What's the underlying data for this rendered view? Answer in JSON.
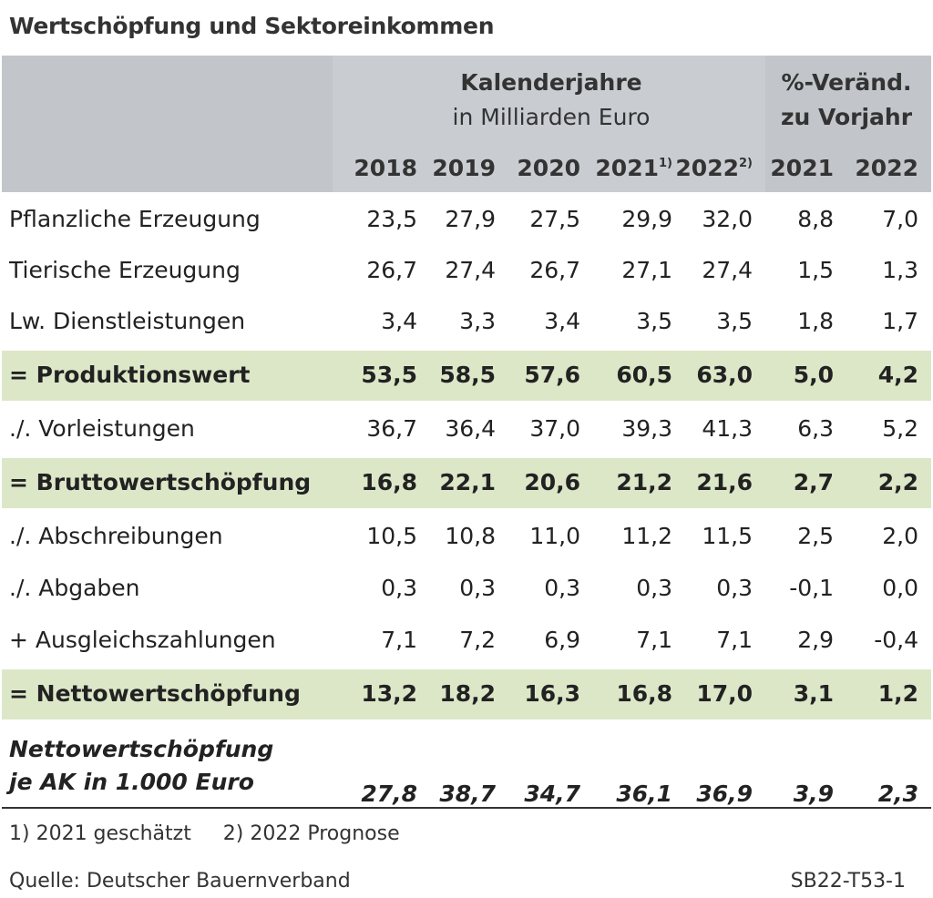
{
  "title": "Wertschöpfung und Sektoreinkommen",
  "header": {
    "group1_line1": "Kalenderjahre",
    "group1_line2": "in Milliarden Euro",
    "group2_line1": "%-Veränd.",
    "group2_line2": "zu Vorjahr",
    "years": [
      {
        "label": "2018",
        "sup": ""
      },
      {
        "label": "2019",
        "sup": ""
      },
      {
        "label": "2020",
        "sup": ""
      },
      {
        "label": "2021",
        "sup": "1)"
      },
      {
        "label": "2022",
        "sup": "2)"
      },
      {
        "label": "2021",
        "sup": ""
      },
      {
        "label": "2022",
        "sup": ""
      }
    ]
  },
  "rows": [
    {
      "label": "Pflanzliche Erzeugung",
      "highlight": false,
      "values": [
        "23,5",
        "27,9",
        "27,5",
        "29,9",
        "32,0",
        "8,8",
        "7,0"
      ]
    },
    {
      "label": "Tierische Erzeugung",
      "highlight": false,
      "values": [
        "26,7",
        "27,4",
        "26,7",
        "27,1",
        "27,4",
        "1,5",
        "1,3"
      ]
    },
    {
      "label": "Lw. Dienstleistungen",
      "highlight": false,
      "values": [
        "3,4",
        "3,3",
        "3,4",
        "3,5",
        "3,5",
        "1,8",
        "1,7"
      ]
    },
    {
      "label": "= Produktionswert",
      "highlight": true,
      "values": [
        "53,5",
        "58,5",
        "57,6",
        "60,5",
        "63,0",
        "5,0",
        "4,2"
      ]
    },
    {
      "label": "./. Vorleistungen",
      "highlight": false,
      "values": [
        "36,7",
        "36,4",
        "37,0",
        "39,3",
        "41,3",
        "6,3",
        "5,2"
      ]
    },
    {
      "label": "= Bruttowertschöpfung",
      "highlight": true,
      "values": [
        "16,8",
        "22,1",
        "20,6",
        "21,2",
        "21,6",
        "2,7",
        "2,2"
      ]
    },
    {
      "label": "./. Abschreibungen",
      "highlight": false,
      "values": [
        "10,5",
        "10,8",
        "11,0",
        "11,2",
        "11,5",
        "2,5",
        "2,0"
      ]
    },
    {
      "label": "./. Abgaben",
      "highlight": false,
      "values": [
        "0,3",
        "0,3",
        "0,3",
        "0,3",
        "0,3",
        "-0,1",
        "0,0"
      ]
    },
    {
      "label": "+ Ausgleichszahlungen",
      "highlight": false,
      "values": [
        "7,1",
        "7,2",
        "6,9",
        "7,1",
        "7,1",
        "2,9",
        "-0,4"
      ]
    },
    {
      "label": "= Nettowertschöpfung",
      "highlight": true,
      "values": [
        "13,2",
        "18,2",
        "16,3",
        "16,8",
        "17,0",
        "3,1",
        "1,2"
      ]
    }
  ],
  "last_row": {
    "label_line1": "Nettowertschöpfung",
    "label_line2": "je AK in 1.000 Euro",
    "values": [
      "27,8",
      "38,7",
      "34,7",
      "36,1",
      "36,9",
      "3,9",
      "2,3"
    ]
  },
  "footnote": "1) 2021 geschätzt     2) 2022 Prognose",
  "source": "Quelle: Deutscher Bauernverband",
  "code": "SB22-T53-1",
  "colors": {
    "header": "#c9cdd2",
    "highlight": "#dce7c8"
  }
}
